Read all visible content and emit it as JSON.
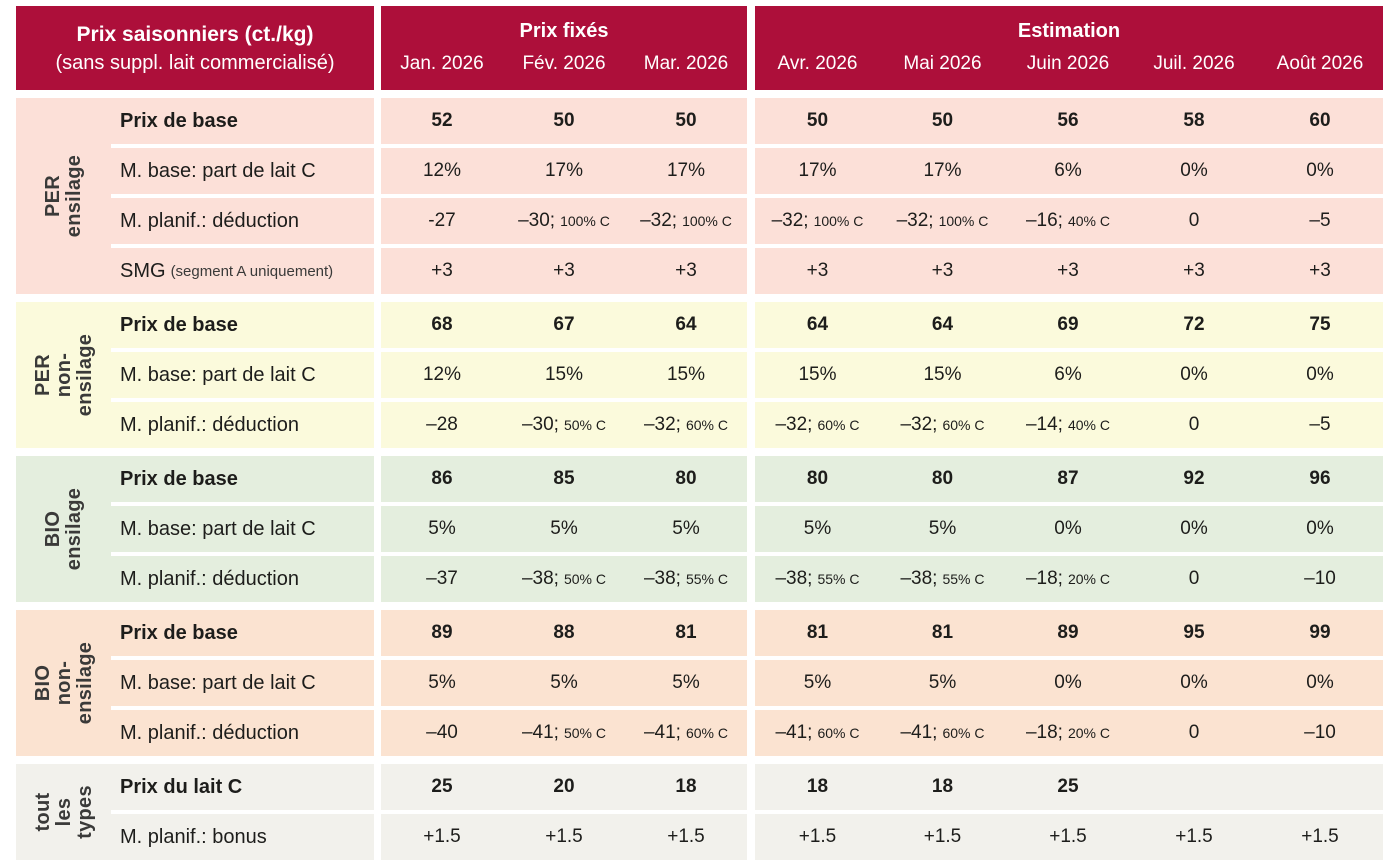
{
  "colors": {
    "header_bg": "#ad0f3a",
    "header_text": "#ffffff",
    "body_text": "#1d1d1b",
    "group_label_text": "#3a3a39",
    "per_ensilage_bg": "#fce0d8",
    "per_non_ensilage_bg": "#fbfadc",
    "bio_ensilage_bg": "#e4eede",
    "bio_non_ensilage_bg": "#fbe3d1",
    "tout_types_bg": "#f2f1ec"
  },
  "header": {
    "title": "Prix saisonniers (ct./kg)",
    "subtitle": "(sans suppl. lait commercialisé)",
    "fixed_label": "Prix fixés",
    "estimation_label": "Estimation",
    "months_fixed": [
      "Jan. 2026",
      "Fév. 2026",
      "Mar. 2026"
    ],
    "months_estimation": [
      "Avr. 2026",
      "Mai 2026",
      "Juin 2026",
      "Juil. 2026",
      "Août 2026"
    ]
  },
  "sections": [
    {
      "group": "PER\nensilage",
      "bg": "#fce0d8",
      "rows": [
        {
          "label": "Prix de base",
          "bold": true,
          "values": [
            "52",
            "50",
            "50",
            "50",
            "50",
            "56",
            "58",
            "60"
          ]
        },
        {
          "label": "M. base: part de lait C",
          "values": [
            "12%",
            "17%",
            "17%",
            "17%",
            "17%",
            "6%",
            "0%",
            "0%"
          ]
        },
        {
          "label": "M. planif.: déduction",
          "values": [
            "-27",
            "–30;|100% C",
            "–32;|100% C",
            "–32;|100% C",
            "–32;|100% C",
            "–16;|40% C",
            "0",
            "–5"
          ]
        },
        {
          "label": "SMG",
          "label_small": "(segment A uniquement)",
          "values": [
            "+3",
            "+3",
            "+3",
            "+3",
            "+3",
            "+3",
            "+3",
            "+3"
          ]
        }
      ]
    },
    {
      "group": "PER non-\nensilage",
      "bg": "#fbfadc",
      "rows": [
        {
          "label": "Prix de base",
          "bold": true,
          "values": [
            "68",
            "67",
            "64",
            "64",
            "64",
            "69",
            "72",
            "75"
          ]
        },
        {
          "label": "M. base: part de lait C",
          "values": [
            "12%",
            "15%",
            "15%",
            "15%",
            "15%",
            "6%",
            "0%",
            "0%"
          ]
        },
        {
          "label": "M. planif.: déduction",
          "values": [
            "–28",
            "–30;|50% C",
            "–32;|60% C",
            "–32;|60% C",
            "–32;|60% C",
            "–14;|40% C",
            "0",
            "–5"
          ]
        }
      ]
    },
    {
      "group": "BIO\nensilage",
      "bg": "#e4eede",
      "rows": [
        {
          "label": "Prix de base",
          "bold": true,
          "values": [
            "86",
            "85",
            "80",
            "80",
            "80",
            "87",
            "92",
            "96"
          ]
        },
        {
          "label": "M. base: part de lait C",
          "values": [
            "5%",
            "5%",
            "5%",
            "5%",
            "5%",
            "0%",
            "0%",
            "0%"
          ]
        },
        {
          "label": "M. planif.: déduction",
          "values": [
            "–37",
            "–38;|50% C",
            "–38;|55% C",
            "–38;|55% C",
            "–38;|55% C",
            "–18;|20% C",
            "0",
            "–10"
          ]
        }
      ]
    },
    {
      "group": "BIO non-\nensilage",
      "bg": "#fbe3d1",
      "rows": [
        {
          "label": "Prix de base",
          "bold": true,
          "values": [
            "89",
            "88",
            "81",
            "81",
            "81",
            "89",
            "95",
            "99"
          ]
        },
        {
          "label": "M. base: part de lait C",
          "values": [
            "5%",
            "5%",
            "5%",
            "5%",
            "5%",
            "0%",
            "0%",
            "0%"
          ]
        },
        {
          "label": "M. planif.: déduction",
          "values": [
            "–40",
            "–41;|50% C",
            "–41;|60% C",
            "–41;|60% C",
            "–41;|60% C",
            "–18;|20% C",
            "0",
            "–10"
          ]
        }
      ]
    },
    {
      "group": "tout\nles\ntypes",
      "bg": "#f2f1ec",
      "rows": [
        {
          "label": "Prix du lait C",
          "bold": true,
          "values": [
            "25",
            "20",
            "18",
            "18",
            "18",
            "25",
            "",
            ""
          ]
        },
        {
          "label": "M. planif.: bonus",
          "values": [
            "+1.5",
            "+1.5",
            "+1.5",
            "+1.5",
            "+1.5",
            "+1.5",
            "+1.5",
            "+1.5"
          ]
        }
      ]
    }
  ]
}
